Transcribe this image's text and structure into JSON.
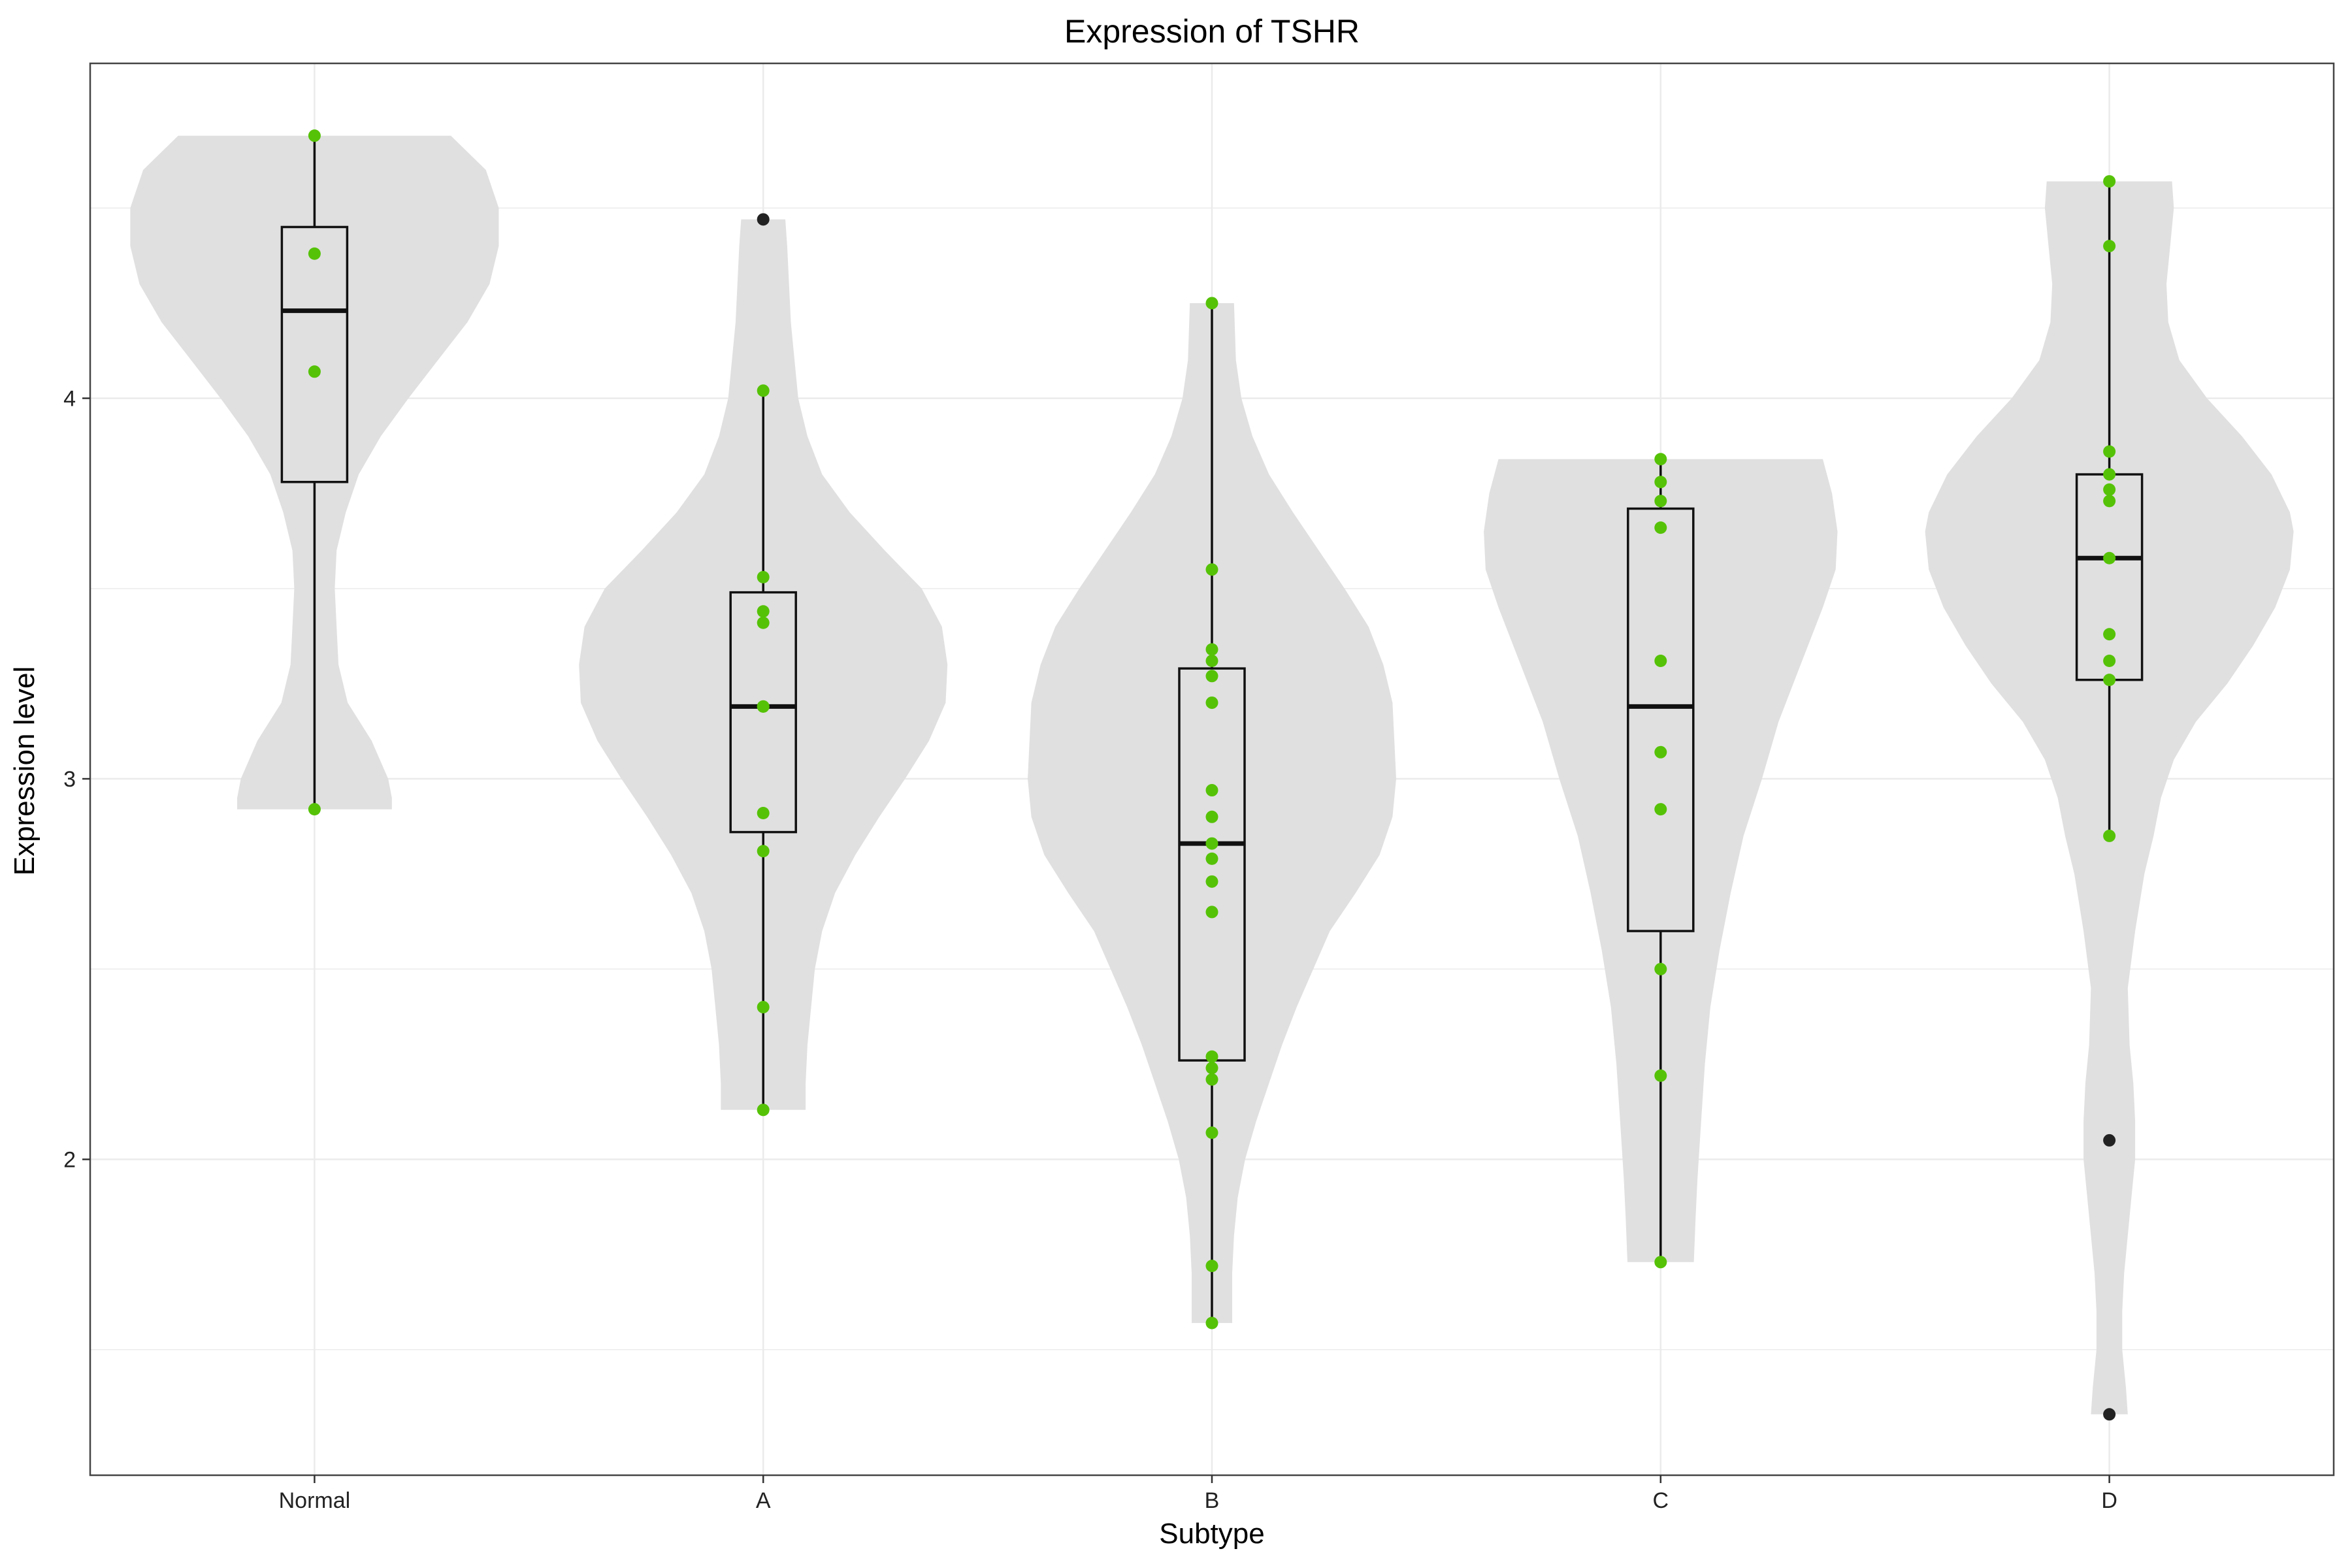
{
  "chart_data": {
    "type": "violin",
    "title": "Expression of TSHR",
    "xlabel": "Subtype",
    "ylabel": "Expression level",
    "ylim": [
      1.17,
      4.88
    ],
    "yticks": [
      2,
      3,
      4
    ],
    "grid": true,
    "legend": "none",
    "colors": {
      "violin": "#e0e0e0",
      "points": "#55c207",
      "outliers": "#222222",
      "box": "#111111",
      "grid": "#ebebeb",
      "border": "#444444"
    },
    "categories": [
      "Normal",
      "A",
      "B",
      "C",
      "D"
    ],
    "groups": [
      {
        "name": "Normal",
        "points": [
          4.69,
          4.38,
          4.07,
          2.92
        ],
        "box": {
          "min": 2.92,
          "q1": 3.78,
          "median": 4.23,
          "q3": 4.45,
          "max": 4.69
        },
        "outliers": [],
        "violin": [
          [
            4.69,
            0.74
          ],
          [
            4.6,
            0.93
          ],
          [
            4.5,
            1.0
          ],
          [
            4.4,
            1.0
          ],
          [
            4.3,
            0.95
          ],
          [
            4.2,
            0.83
          ],
          [
            4.1,
            0.67
          ],
          [
            4.0,
            0.51
          ],
          [
            3.9,
            0.36
          ],
          [
            3.8,
            0.24
          ],
          [
            3.7,
            0.17
          ],
          [
            3.6,
            0.12
          ],
          [
            3.5,
            0.11
          ],
          [
            3.4,
            0.12
          ],
          [
            3.3,
            0.13
          ],
          [
            3.2,
            0.18
          ],
          [
            3.1,
            0.31
          ],
          [
            3.0,
            0.4
          ],
          [
            2.95,
            0.42
          ],
          [
            2.92,
            0.42
          ]
        ]
      },
      {
        "name": "A",
        "points": [
          4.02,
          3.53,
          3.44,
          3.41,
          3.19,
          3.19,
          2.91,
          2.81,
          2.4,
          2.13
        ],
        "box": {
          "min": 2.13,
          "q1": 2.86,
          "median": 3.19,
          "q3": 3.49,
          "max": 4.02
        },
        "outliers": [
          4.47
        ],
        "violin": [
          [
            4.47,
            0.12
          ],
          [
            4.4,
            0.13
          ],
          [
            4.3,
            0.14
          ],
          [
            4.2,
            0.15
          ],
          [
            4.1,
            0.17
          ],
          [
            4.0,
            0.19
          ],
          [
            3.9,
            0.24
          ],
          [
            3.8,
            0.32
          ],
          [
            3.7,
            0.47
          ],
          [
            3.6,
            0.66
          ],
          [
            3.5,
            0.86
          ],
          [
            3.4,
            0.97
          ],
          [
            3.3,
            1.0
          ],
          [
            3.2,
            0.99
          ],
          [
            3.1,
            0.9
          ],
          [
            3.0,
            0.77
          ],
          [
            2.9,
            0.63
          ],
          [
            2.8,
            0.5
          ],
          [
            2.7,
            0.39
          ],
          [
            2.6,
            0.32
          ],
          [
            2.5,
            0.28
          ],
          [
            2.4,
            0.26
          ],
          [
            2.3,
            0.24
          ],
          [
            2.2,
            0.23
          ],
          [
            2.13,
            0.23
          ]
        ]
      },
      {
        "name": "B",
        "points": [
          4.25,
          3.55,
          3.34,
          3.31,
          3.27,
          3.2,
          2.97,
          2.9,
          2.83,
          2.79,
          2.73,
          2.65,
          2.27,
          2.24,
          2.21,
          2.07,
          1.72,
          1.57
        ],
        "box": {
          "min": 1.57,
          "q1": 2.26,
          "median": 2.83,
          "q3": 3.29,
          "max": 4.25
        },
        "outliers": [],
        "violin": [
          [
            4.25,
            0.12
          ],
          [
            4.1,
            0.13
          ],
          [
            4.0,
            0.16
          ],
          [
            3.9,
            0.22
          ],
          [
            3.8,
            0.31
          ],
          [
            3.7,
            0.44
          ],
          [
            3.6,
            0.58
          ],
          [
            3.5,
            0.72
          ],
          [
            3.4,
            0.85
          ],
          [
            3.3,
            0.93
          ],
          [
            3.2,
            0.98
          ],
          [
            3.0,
            1.0
          ],
          [
            2.9,
            0.98
          ],
          [
            2.8,
            0.91
          ],
          [
            2.7,
            0.78
          ],
          [
            2.6,
            0.64
          ],
          [
            2.5,
            0.55
          ],
          [
            2.4,
            0.46
          ],
          [
            2.3,
            0.38
          ],
          [
            2.2,
            0.31
          ],
          [
            2.1,
            0.24
          ],
          [
            2.0,
            0.18
          ],
          [
            1.9,
            0.14
          ],
          [
            1.8,
            0.12
          ],
          [
            1.7,
            0.11
          ],
          [
            1.57,
            0.11
          ]
        ]
      },
      {
        "name": "C",
        "points": [
          3.84,
          3.78,
          3.73,
          3.66,
          3.31,
          3.07,
          2.92,
          2.5,
          2.22,
          1.73
        ],
        "box": {
          "min": 1.73,
          "q1": 2.6,
          "median": 3.19,
          "q3": 3.71,
          "max": 3.84
        },
        "outliers": [],
        "violin": [
          [
            3.84,
            0.88
          ],
          [
            3.75,
            0.93
          ],
          [
            3.65,
            0.96
          ],
          [
            3.55,
            0.95
          ],
          [
            3.45,
            0.88
          ],
          [
            3.3,
            0.76
          ],
          [
            3.15,
            0.64
          ],
          [
            3.0,
            0.55
          ],
          [
            2.85,
            0.45
          ],
          [
            2.7,
            0.38
          ],
          [
            2.55,
            0.32
          ],
          [
            2.4,
            0.27
          ],
          [
            2.25,
            0.24
          ],
          [
            2.1,
            0.22
          ],
          [
            1.95,
            0.2
          ],
          [
            1.85,
            0.19
          ],
          [
            1.73,
            0.18
          ]
        ]
      },
      {
        "name": "D",
        "points": [
          4.57,
          4.4,
          3.86,
          3.8,
          3.76,
          3.73,
          3.58,
          3.38,
          3.31,
          3.26,
          2.85
        ],
        "box": {
          "min": 2.85,
          "q1": 3.26,
          "median": 3.58,
          "q3": 3.8,
          "max": 4.57
        },
        "outliers": [
          2.05,
          1.33
        ],
        "violin": [
          [
            4.57,
            0.34
          ],
          [
            4.5,
            0.35
          ],
          [
            4.4,
            0.33
          ],
          [
            4.3,
            0.31
          ],
          [
            4.2,
            0.32
          ],
          [
            4.1,
            0.38
          ],
          [
            4.0,
            0.53
          ],
          [
            3.9,
            0.72
          ],
          [
            3.8,
            0.88
          ],
          [
            3.7,
            0.98
          ],
          [
            3.65,
            1.0
          ],
          [
            3.55,
            0.98
          ],
          [
            3.45,
            0.9
          ],
          [
            3.35,
            0.78
          ],
          [
            3.25,
            0.64
          ],
          [
            3.15,
            0.47
          ],
          [
            3.05,
            0.35
          ],
          [
            2.95,
            0.28
          ],
          [
            2.85,
            0.24
          ],
          [
            2.75,
            0.19
          ],
          [
            2.6,
            0.14
          ],
          [
            2.45,
            0.1
          ],
          [
            2.3,
            0.11
          ],
          [
            2.2,
            0.13
          ],
          [
            2.1,
            0.14
          ],
          [
            2.0,
            0.14
          ],
          [
            1.9,
            0.12
          ],
          [
            1.8,
            0.1
          ],
          [
            1.7,
            0.08
          ],
          [
            1.6,
            0.07
          ],
          [
            1.5,
            0.07
          ],
          [
            1.4,
            0.09
          ],
          [
            1.33,
            0.1
          ]
        ]
      }
    ]
  }
}
